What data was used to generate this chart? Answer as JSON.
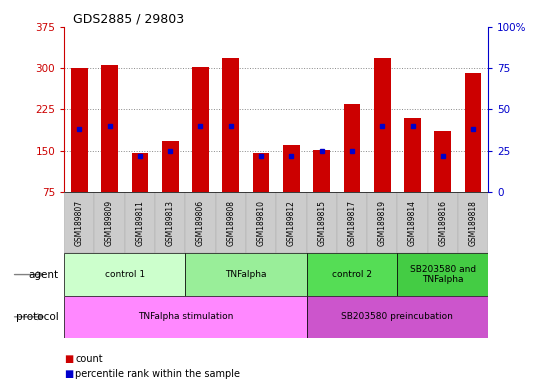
{
  "title": "GDS2885 / 29803",
  "samples": [
    "GSM189807",
    "GSM189809",
    "GSM189811",
    "GSM189813",
    "GSM189806",
    "GSM189808",
    "GSM189810",
    "GSM189812",
    "GSM189815",
    "GSM189817",
    "GSM189819",
    "GSM189814",
    "GSM189816",
    "GSM189818"
  ],
  "counts": [
    300,
    305,
    145,
    168,
    302,
    318,
    145,
    160,
    152,
    235,
    318,
    210,
    185,
    292
  ],
  "percentile_ranks": [
    38,
    40,
    22,
    25,
    40,
    40,
    22,
    22,
    25,
    25,
    40,
    40,
    22,
    38
  ],
  "ylim_left": [
    75,
    375
  ],
  "ylim_right": [
    0,
    100
  ],
  "yticks_left": [
    75,
    150,
    225,
    300,
    375
  ],
  "yticks_right": [
    0,
    25,
    50,
    75,
    100
  ],
  "bar_color": "#cc0000",
  "dot_color": "#0000cc",
  "grid_color": "#888888",
  "axis_color_left": "#cc0000",
  "axis_color_right": "#0000cc",
  "agent_groups": [
    {
      "label": "control 1",
      "start": 0,
      "end": 4,
      "color": "#ccffcc"
    },
    {
      "label": "TNFalpha",
      "start": 4,
      "end": 8,
      "color": "#99ee99"
    },
    {
      "label": "control 2",
      "start": 8,
      "end": 11,
      "color": "#55dd55"
    },
    {
      "label": "SB203580 and\nTNFalpha",
      "start": 11,
      "end": 14,
      "color": "#44cc44"
    }
  ],
  "protocol_groups": [
    {
      "label": "TNFalpha stimulation",
      "start": 0,
      "end": 8,
      "color": "#ff88ff"
    },
    {
      "label": "SB203580 preincubation",
      "start": 8,
      "end": 14,
      "color": "#cc55cc"
    }
  ],
  "bar_color_hex": "#cc0000",
  "dot_color_hex": "#0000cc",
  "xticklabel_bg": "#cccccc"
}
